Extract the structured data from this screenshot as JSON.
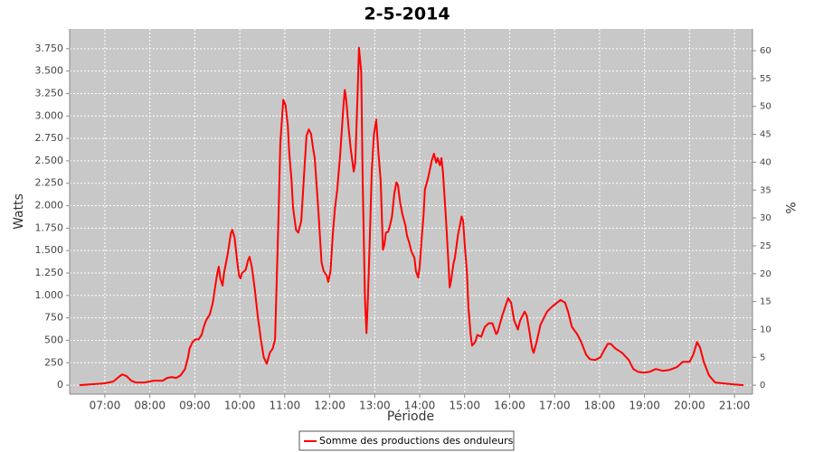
{
  "chart_data": {
    "type": "line",
    "title": "2-5-2014",
    "x_label": "Période",
    "y_label": "Watts",
    "y2_label": "%",
    "x": [
      "06:26",
      "06:41",
      "06:59",
      "07:11",
      "07:17",
      "07:23",
      "07:29",
      "07:35",
      "07:41",
      "07:53",
      "08:05",
      "08:17",
      "08:23",
      "08:29",
      "08:35",
      "08:41",
      "08:47",
      "08:51",
      "08:53",
      "08:57",
      "09:01",
      "09:05",
      "09:09",
      "09:12",
      "09:15",
      "09:20",
      "09:24",
      "09:27",
      "09:30",
      "09:32",
      "09:34",
      "09:37",
      "09:39",
      "09:44",
      "09:48",
      "09:50",
      "09:53",
      "09:56",
      "09:59",
      "10:01",
      "10:03",
      "10:06",
      "10:08",
      "10:11",
      "10:13",
      "10:16",
      "10:20",
      "10:24",
      "10:28",
      "10:32",
      "10:36",
      "10:40",
      "10:44",
      "10:47",
      "10:49",
      "10:52",
      "10:54",
      "10:58",
      "11:01",
      "11:04",
      "11:06",
      "11:09",
      "11:11",
      "11:15",
      "11:18",
      "11:22",
      "11:26",
      "11:29",
      "11:32",
      "11:35",
      "11:38",
      "11:40",
      "11:42",
      "11:45",
      "11:49",
      "11:52",
      "11:56",
      "11:58",
      "12:01",
      "12:04",
      "12:07",
      "12:10",
      "12:14",
      "12:18",
      "12:20",
      "12:22",
      "12:25",
      "12:28",
      "12:32",
      "12:34",
      "12:37",
      "12:39",
      "12:42",
      "12:44",
      "12:47",
      "12:49",
      "12:51",
      "12:54",
      "12:56",
      "12:59",
      "13:02",
      "13:05",
      "13:08",
      "13:11",
      "13:13",
      "13:15",
      "13:18",
      "13:20",
      "13:23",
      "13:26",
      "13:29",
      "13:31",
      "13:34",
      "13:37",
      "13:41",
      "13:43",
      "13:46",
      "13:49",
      "13:53",
      "13:55",
      "13:58",
      "14:00",
      "14:03",
      "14:05",
      "14:07",
      "14:11",
      "14:13",
      "14:16",
      "14:19",
      "14:22",
      "14:24",
      "14:27",
      "14:29",
      "14:31",
      "14:35",
      "14:38",
      "14:40",
      "14:42",
      "14:45",
      "14:47",
      "14:51",
      "14:56",
      "14:58",
      "15:00",
      "15:03",
      "15:05",
      "15:08",
      "15:10",
      "15:14",
      "15:17",
      "15:22",
      "15:27",
      "15:32",
      "15:37",
      "15:42",
      "15:44",
      "15:50",
      "15:54",
      "15:58",
      "16:02",
      "16:06",
      "16:11",
      "16:14",
      "16:20",
      "16:23",
      "16:26",
      "16:30",
      "16:32",
      "16:36",
      "16:41",
      "16:44",
      "16:50",
      "16:56",
      "17:02",
      "17:08",
      "17:14",
      "17:18",
      "17:23",
      "17:30",
      "17:35",
      "17:42",
      "17:47",
      "17:54",
      "18:01",
      "18:06",
      "18:11",
      "18:15",
      "18:21",
      "18:30",
      "18:39",
      "18:45",
      "18:51",
      "18:59",
      "19:07",
      "19:15",
      "19:24",
      "19:33",
      "19:43",
      "19:51",
      "20:00",
      "20:05",
      "20:10",
      "20:14",
      "20:19",
      "20:26",
      "20:34",
      "20:46",
      "20:58",
      "21:12"
    ],
    "series": [
      {
        "name": "Somme des productions des onduleurs",
        "color": "#ff0000",
        "values": [
          0,
          10,
          20,
          40,
          80,
          120,
          100,
          50,
          30,
          30,
          50,
          50,
          80,
          90,
          80,
          110,
          180,
          310,
          410,
          480,
          510,
          510,
          560,
          650,
          720,
          790,
          920,
          1090,
          1250,
          1320,
          1190,
          1110,
          1250,
          1470,
          1690,
          1730,
          1650,
          1420,
          1220,
          1190,
          1250,
          1270,
          1290,
          1390,
          1430,
          1320,
          1070,
          770,
          520,
          310,
          240,
          360,
          410,
          510,
          1070,
          1980,
          2690,
          3180,
          3120,
          2900,
          2590,
          2290,
          1980,
          1730,
          1700,
          1830,
          2380,
          2780,
          2850,
          2800,
          2630,
          2530,
          2280,
          1930,
          1370,
          1270,
          1220,
          1150,
          1270,
          1670,
          1980,
          2180,
          2580,
          3080,
          3290,
          3180,
          2880,
          2630,
          2380,
          2480,
          3190,
          3760,
          3490,
          2280,
          970,
          580,
          970,
          1770,
          2380,
          2800,
          2960,
          2590,
          2280,
          1510,
          1570,
          1700,
          1710,
          1770,
          1880,
          2130,
          2260,
          2230,
          2030,
          1900,
          1780,
          1670,
          1590,
          1490,
          1420,
          1270,
          1200,
          1320,
          1670,
          1880,
          2180,
          2300,
          2380,
          2500,
          2580,
          2480,
          2530,
          2450,
          2530,
          2380,
          1870,
          1420,
          1090,
          1170,
          1350,
          1420,
          1670,
          1880,
          1830,
          1570,
          1270,
          870,
          560,
          440,
          480,
          560,
          540,
          650,
          690,
          690,
          570,
          590,
          770,
          870,
          970,
          920,
          720,
          620,
          720,
          820,
          770,
          620,
          410,
          360,
          480,
          670,
          720,
          820,
          870,
          910,
          950,
          920,
          820,
          650,
          570,
          490,
          340,
          290,
          280,
          310,
          390,
          460,
          460,
          410,
          360,
          280,
          180,
          150,
          140,
          150,
          180,
          160,
          170,
          200,
          260,
          260,
          340,
          480,
          420,
          260,
          110,
          30,
          20,
          10,
          0
        ]
      }
    ],
    "xlim": [
      "06:13",
      "21:24"
    ],
    "xticks": [
      "07:00",
      "08:00",
      "09:00",
      "10:00",
      "11:00",
      "12:00",
      "13:00",
      "14:00",
      "15:00",
      "16:00",
      "17:00",
      "18:00",
      "19:00",
      "20:00",
      "21:00"
    ],
    "ylim": [
      -100,
      3970
    ],
    "yticks": [
      0,
      250,
      500,
      750,
      {
        "value": 1000,
        "label": "1.000"
      },
      {
        "value": 1250,
        "label": "1.250"
      },
      {
        "value": 1500,
        "label": "1.500"
      },
      {
        "value": 1750,
        "label": "1.750"
      },
      {
        "value": 2000,
        "label": "2.000"
      },
      {
        "value": 2250,
        "label": "2.250"
      },
      {
        "value": 2500,
        "label": "2.500"
      },
      {
        "value": 2750,
        "label": "2.750"
      },
      {
        "value": 3000,
        "label": "3.000"
      },
      {
        "value": 3250,
        "label": "3.250"
      },
      {
        "value": 3500,
        "label": "3.500"
      },
      {
        "value": 3750,
        "label": "3.750"
      }
    ],
    "y2lim": [
      -1.6,
      63.9
    ],
    "y2ticks": [
      0,
      5,
      10,
      15,
      20,
      25,
      30,
      35,
      40,
      45,
      50,
      55,
      60
    ],
    "grid": true,
    "legend": "bottom"
  }
}
